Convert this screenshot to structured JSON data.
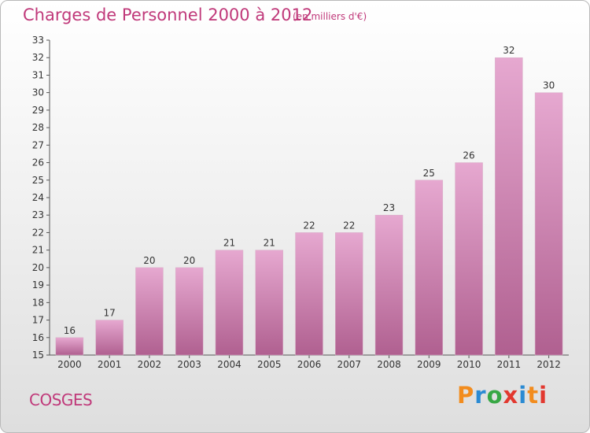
{
  "title": "Charges de Personnel 2000 à 2012",
  "subtitle": "(en milliers d'€)",
  "commune": "COSGES",
  "logo": {
    "text": "Proxiti",
    "letters": [
      "P",
      "r",
      "o",
      "x",
      "i",
      "t",
      "i"
    ]
  },
  "colors": {
    "accent": "#c0397a",
    "bar_top": "#e6a8d0",
    "bar_bottom": "#b06090"
  },
  "chart_data": {
    "type": "bar",
    "title": "Charges de Personnel 2000 à 2012",
    "xlabel": "",
    "ylabel": "(en milliers d'€)",
    "categories": [
      "2000",
      "2001",
      "2002",
      "2003",
      "2004",
      "2005",
      "2006",
      "2007",
      "2008",
      "2009",
      "2010",
      "2011",
      "2012"
    ],
    "values": [
      16,
      17,
      20,
      20,
      21,
      21,
      22,
      22,
      23,
      25,
      26,
      32,
      30
    ],
    "ylim": [
      15,
      33
    ],
    "yticks": [
      15,
      16,
      17,
      18,
      19,
      20,
      21,
      22,
      23,
      24,
      25,
      26,
      27,
      28,
      29,
      30,
      31,
      32,
      33
    ],
    "grid": false
  }
}
